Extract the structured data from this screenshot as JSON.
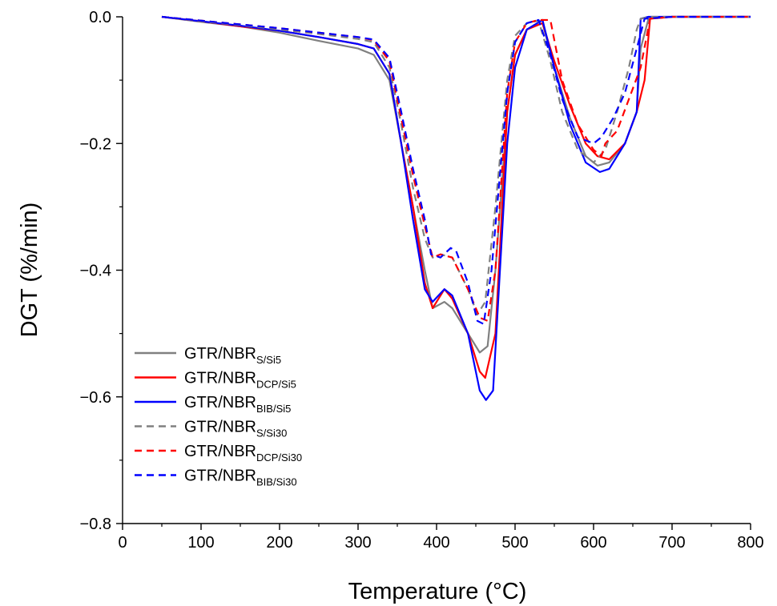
{
  "chart_data": {
    "type": "line",
    "title": "",
    "xlabel": "Temperature (°C)",
    "ylabel": "DGT (%/min)",
    "xlim": [
      0,
      800
    ],
    "ylim": [
      -0.8,
      0.0
    ],
    "x_ticks": [
      0,
      100,
      200,
      300,
      400,
      500,
      600,
      700,
      800
    ],
    "y_ticks": [
      0.0,
      -0.2,
      -0.4,
      -0.6,
      -0.8
    ],
    "x_tick_labels": [
      "0",
      "100",
      "200",
      "300",
      "400",
      "500",
      "600",
      "700",
      "800"
    ],
    "y_tick_labels": [
      "0.0",
      "−0.2",
      "−0.4",
      "−0.6",
      "−0.8"
    ],
    "grid": false,
    "legend_position": "bottom-left",
    "series": [
      {
        "name": "GTR/NBR",
        "name_sub": "S/Si5",
        "color": "#808080",
        "dash": "solid",
        "x": [
          50,
          100,
          150,
          200,
          250,
          300,
          320,
          340,
          355,
          370,
          385,
          395,
          410,
          420,
          440,
          455,
          465,
          475,
          490,
          500,
          515,
          535,
          550,
          570,
          590,
          605,
          620,
          640,
          655,
          660,
          670,
          700,
          800
        ],
        "y": [
          0,
          -0.008,
          -0.015,
          -0.025,
          -0.038,
          -0.05,
          -0.06,
          -0.1,
          -0.2,
          -0.3,
          -0.4,
          -0.46,
          -0.45,
          -0.46,
          -0.5,
          -0.53,
          -0.52,
          -0.4,
          -0.15,
          -0.06,
          -0.02,
          -0.01,
          -0.08,
          -0.16,
          -0.22,
          -0.235,
          -0.23,
          -0.2,
          -0.15,
          -0.05,
          -0.003,
          0,
          0
        ]
      },
      {
        "name": "GTR/NBR",
        "name_sub": "DCP/Si5",
        "color": "#ff0000",
        "dash": "solid",
        "x": [
          50,
          100,
          150,
          200,
          250,
          300,
          320,
          340,
          355,
          370,
          385,
          395,
          410,
          420,
          440,
          455,
          462,
          475,
          490,
          500,
          515,
          535,
          550,
          570,
          590,
          605,
          620,
          640,
          655,
          665,
          672,
          700,
          800
        ],
        "y": [
          0,
          -0.007,
          -0.015,
          -0.022,
          -0.032,
          -0.043,
          -0.05,
          -0.09,
          -0.2,
          -0.3,
          -0.42,
          -0.46,
          -0.43,
          -0.445,
          -0.5,
          -0.56,
          -0.57,
          -0.5,
          -0.15,
          -0.06,
          -0.02,
          -0.01,
          -0.07,
          -0.14,
          -0.2,
          -0.22,
          -0.225,
          -0.2,
          -0.15,
          -0.1,
          -0.003,
          0,
          0
        ]
      },
      {
        "name": "GTR/NBR",
        "name_sub": "BIB/Si5",
        "color": "#0000ff",
        "dash": "solid",
        "x": [
          50,
          100,
          150,
          200,
          250,
          300,
          320,
          340,
          355,
          370,
          385,
          395,
          410,
          420,
          440,
          455,
          463,
          472,
          490,
          500,
          515,
          535,
          550,
          570,
          590,
          608,
          620,
          640,
          655,
          660,
          670,
          700,
          800
        ],
        "y": [
          0,
          -0.007,
          -0.014,
          -0.022,
          -0.032,
          -0.043,
          -0.05,
          -0.09,
          -0.2,
          -0.32,
          -0.43,
          -0.45,
          -0.43,
          -0.44,
          -0.5,
          -0.59,
          -0.605,
          -0.59,
          -0.2,
          -0.08,
          -0.02,
          -0.005,
          -0.08,
          -0.17,
          -0.23,
          -0.245,
          -0.24,
          -0.2,
          -0.15,
          -0.003,
          0,
          0,
          0
        ]
      },
      {
        "name": "GTR/NBR",
        "name_sub": "S/Si30",
        "color": "#808080",
        "dash": "dashed",
        "x": [
          50,
          100,
          150,
          200,
          250,
          300,
          320,
          340,
          355,
          370,
          385,
          395,
          405,
          420,
          440,
          452,
          462,
          475,
          490,
          500,
          515,
          530,
          545,
          560,
          580,
          600,
          615,
          630,
          645,
          655,
          660,
          670,
          700,
          800
        ],
        "y": [
          0,
          -0.007,
          -0.013,
          -0.02,
          -0.027,
          -0.035,
          -0.04,
          -0.08,
          -0.17,
          -0.27,
          -0.35,
          -0.38,
          -0.375,
          -0.38,
          -0.43,
          -0.47,
          -0.45,
          -0.3,
          -0.1,
          -0.03,
          -0.01,
          -0.006,
          -0.07,
          -0.15,
          -0.21,
          -0.23,
          -0.21,
          -0.15,
          -0.08,
          -0.02,
          -0.003,
          0,
          0,
          0
        ]
      },
      {
        "name": "GTR/NBR",
        "name_sub": "DCP/Si30",
        "color": "#ff0000",
        "dash": "dashed",
        "x": [
          50,
          100,
          150,
          200,
          250,
          300,
          320,
          340,
          355,
          370,
          385,
          395,
          405,
          420,
          440,
          455,
          465,
          475,
          490,
          500,
          515,
          530,
          545,
          560,
          580,
          600,
          610,
          615,
          630,
          645,
          660,
          672,
          700,
          800
        ],
        "y": [
          0,
          -0.006,
          -0.012,
          -0.018,
          -0.025,
          -0.032,
          -0.037,
          -0.07,
          -0.16,
          -0.25,
          -0.33,
          -0.38,
          -0.375,
          -0.38,
          -0.43,
          -0.475,
          -0.48,
          -0.4,
          -0.12,
          -0.04,
          -0.01,
          -0.005,
          -0.005,
          -0.1,
          -0.17,
          -0.21,
          -0.22,
          -0.2,
          -0.18,
          -0.13,
          -0.08,
          -0.003,
          0,
          0
        ]
      },
      {
        "name": "GTR/NBR",
        "name_sub": "BIB/Si30",
        "color": "#0000ff",
        "dash": "dashed",
        "x": [
          50,
          100,
          150,
          200,
          250,
          300,
          320,
          340,
          355,
          370,
          385,
          393,
          405,
          418,
          425,
          440,
          452,
          460,
          470,
          490,
          500,
          515,
          530,
          545,
          560,
          580,
          600,
          610,
          625,
          640,
          655,
          665,
          700,
          800
        ],
        "y": [
          0,
          -0.006,
          -0.012,
          -0.018,
          -0.025,
          -0.032,
          -0.036,
          -0.065,
          -0.15,
          -0.24,
          -0.32,
          -0.375,
          -0.38,
          -0.365,
          -0.37,
          -0.42,
          -0.48,
          -0.485,
          -0.4,
          -0.12,
          -0.04,
          -0.01,
          -0.005,
          -0.06,
          -0.13,
          -0.19,
          -0.2,
          -0.19,
          -0.16,
          -0.12,
          -0.05,
          -0.003,
          0,
          0
        ]
      }
    ]
  }
}
